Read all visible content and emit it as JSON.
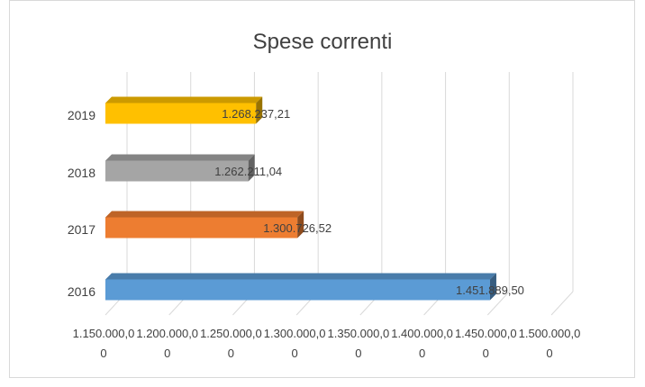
{
  "chart_data": {
    "type": "bar",
    "orientation": "horizontal",
    "style": "3d",
    "title": "Spese correnti",
    "xlabel": "",
    "ylabel": "",
    "categories": [
      "2016",
      "2017",
      "2018",
      "2019"
    ],
    "values": [
      1451889.5,
      1300726.52,
      1262211.04,
      1268237.21
    ],
    "value_labels": [
      "1.451.889,50",
      "1.300.726,52",
      "1.262.211,04",
      "1.268.237,21"
    ],
    "colors": [
      "#5b9bd5",
      "#ed7d31",
      "#a5a5a5",
      "#ffc000"
    ],
    "xlim": [
      1150000,
      1500000
    ],
    "ticks": [
      1150000,
      1200000,
      1250000,
      1300000,
      1350000,
      1400000,
      1450000,
      1500000
    ],
    "tick_labels": [
      [
        "1.150.000,0",
        "0"
      ],
      [
        "1.200.000,0",
        "0"
      ],
      [
        "1.250.000,0",
        "0"
      ],
      [
        "1.300.000,0",
        "0"
      ],
      [
        "1.350.000,0",
        "0"
      ],
      [
        "1.400.000,0",
        "0"
      ],
      [
        "1.450.000,0",
        "0"
      ],
      [
        "1.500.000,0",
        "0"
      ]
    ],
    "grid": true,
    "legend": "none"
  }
}
